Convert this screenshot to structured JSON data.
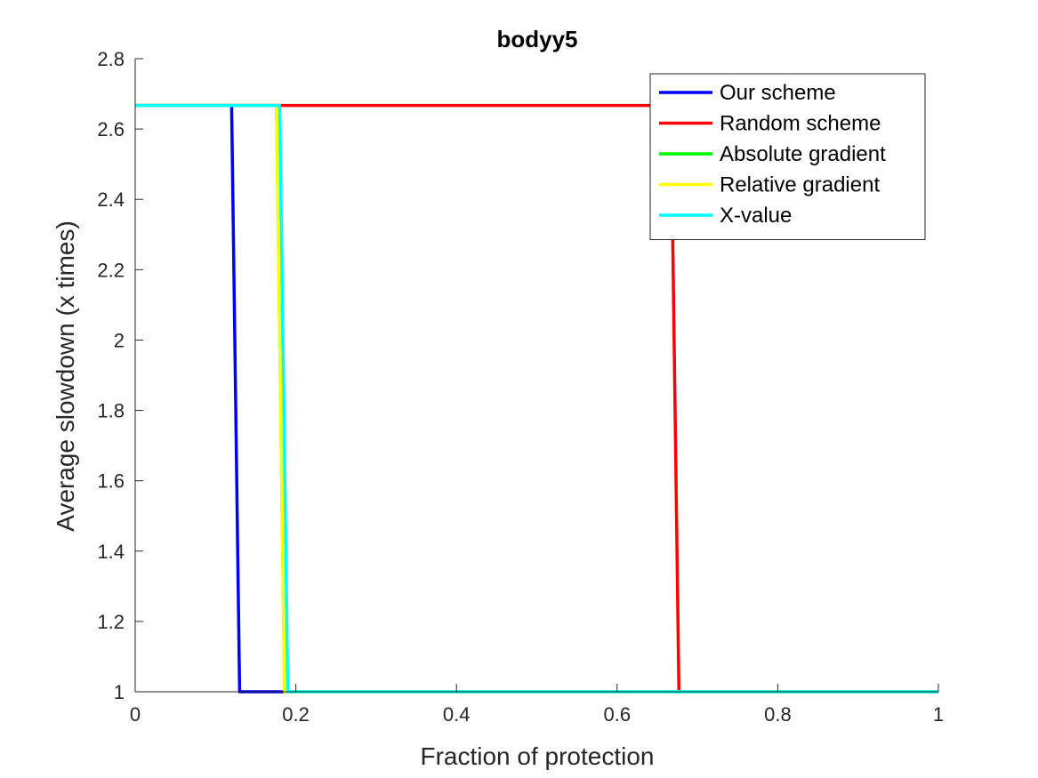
{
  "chart_data": {
    "type": "line",
    "title": "bodyy5",
    "xlabel": "Fraction of protection",
    "ylabel": "Average slowdown (x times)",
    "xlim": [
      0,
      1
    ],
    "ylim": [
      1,
      2.8
    ],
    "xticks": [
      0,
      0.2,
      0.4,
      0.6,
      0.8,
      1
    ],
    "xtick_labels": [
      "0",
      "0.2",
      "0.4",
      "0.6",
      "0.8",
      "1"
    ],
    "yticks": [
      1,
      1.2,
      1.4,
      1.6,
      1.8,
      2,
      2.2,
      2.4,
      2.6,
      2.8
    ],
    "ytick_labels": [
      "1",
      "1.2",
      "1.4",
      "1.6",
      "1.8",
      "2",
      "2.2",
      "2.4",
      "2.6",
      "2.8"
    ],
    "grid": false,
    "legend_position": "top-right",
    "series": [
      {
        "name": "Our scheme",
        "color": "#0000ff",
        "x": [
          0,
          0.12,
          0.13,
          1
        ],
        "y": [
          2.667,
          2.667,
          1,
          1
        ]
      },
      {
        "name": "Random scheme",
        "color": "#ff0000",
        "x": [
          0,
          0.667,
          0.677,
          1
        ],
        "y": [
          2.667,
          2.667,
          1,
          1
        ]
      },
      {
        "name": "Absolute gradient",
        "color": "#00ff00",
        "x": [
          0,
          0.176,
          0.186,
          1
        ],
        "y": [
          2.667,
          2.667,
          1,
          1
        ]
      },
      {
        "name": "Relative gradient",
        "color": "#ffff00",
        "x": [
          0,
          0.176,
          0.186,
          1
        ],
        "y": [
          2.667,
          2.667,
          1,
          1
        ]
      },
      {
        "name": "X-value",
        "color": "#00ffff",
        "x": [
          0,
          0.18,
          0.19,
          1
        ],
        "y": [
          2.667,
          2.667,
          1,
          1
        ]
      }
    ]
  }
}
